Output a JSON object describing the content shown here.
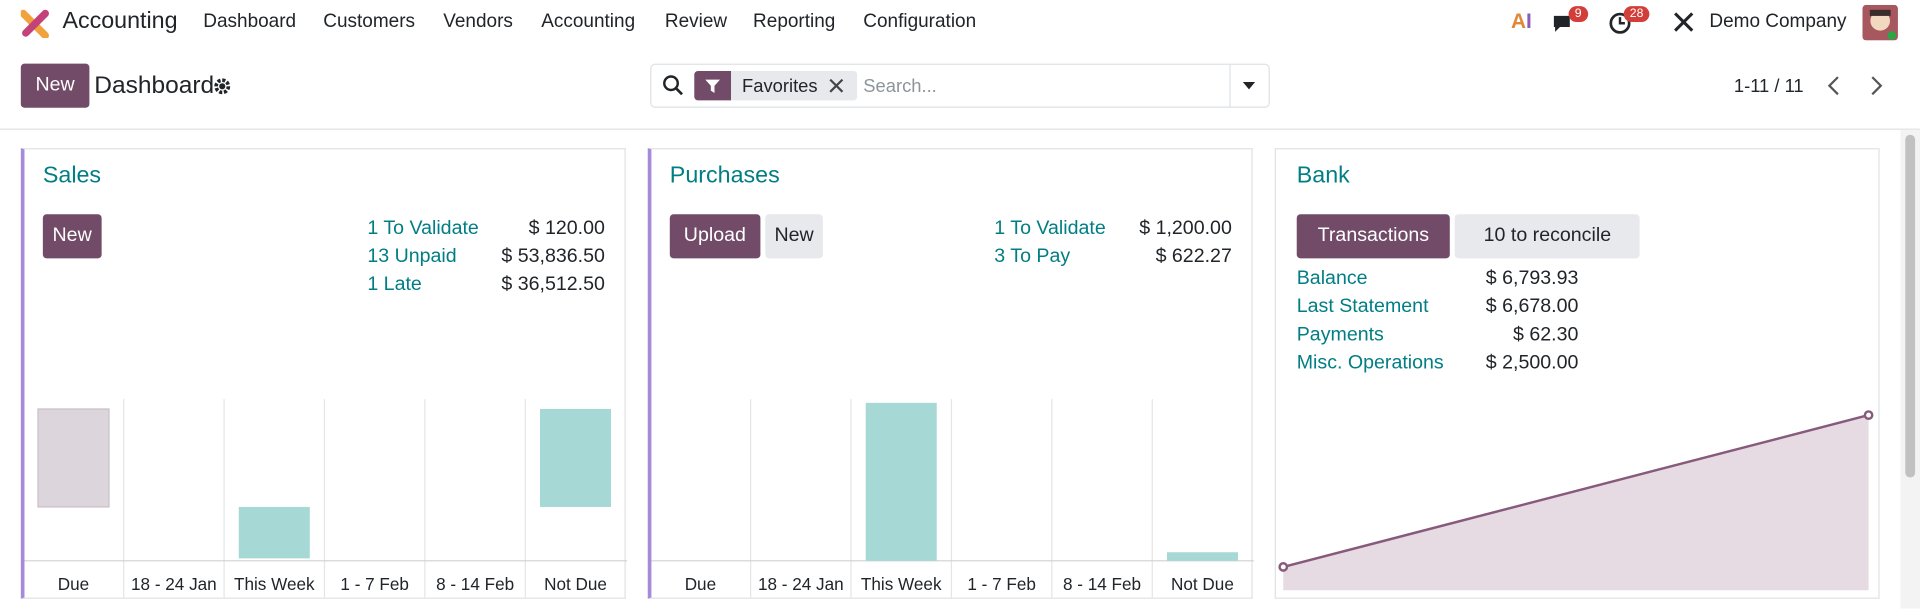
{
  "navbar": {
    "app": "Accounting",
    "menu": [
      "Dashboard",
      "Customers",
      "Vendors",
      "Accounting",
      "Review",
      "Reporting",
      "Configuration"
    ],
    "chat_count": 9,
    "activity_count": 28,
    "company": "Demo Company"
  },
  "control_panel": {
    "new": "New",
    "title": "Dashboard",
    "facet_label": "Favorites",
    "search_placeholder": "Search...",
    "pager": "1-11 / 11"
  },
  "cards": [
    {
      "title": "Sales",
      "buttons": [
        "New"
      ],
      "stats": [
        {
          "label": "1 To Validate",
          "amount": "$ 120.00"
        },
        {
          "label": "13 Unpaid",
          "amount": "$ 53,836.50"
        },
        {
          "label": "1 Late",
          "amount": "$ 36,512.50"
        }
      ],
      "graph": {
        "type": "bar",
        "categories": [
          "Due",
          "18 - 24 Jan",
          "This Week",
          "1 - 7 Feb",
          "8 - 14 Feb",
          "Not Due"
        ],
        "values": [
          80,
          0,
          -42,
          0,
          0,
          80
        ],
        "colors": [
          "#dcd5dc",
          "#a6d8d6",
          "#a6d8d6",
          "#a6d8d6",
          "#a6d8d6",
          "#a6d8d6"
        ],
        "ylim": [
          -44,
          88
        ]
      }
    },
    {
      "title": "Purchases",
      "buttons": [
        "Upload",
        "New"
      ],
      "stats": [
        {
          "label": "1 To Validate",
          "amount": "$ 1,200.00"
        },
        {
          "label": "3 To Pay",
          "amount": "$ 622.27"
        }
      ],
      "graph": {
        "type": "bar",
        "categories": [
          "Due",
          "18 - 24 Jan",
          "This Week",
          "1 - 7 Feb",
          "8 - 14 Feb",
          "Not Due"
        ],
        "values": [
          0,
          0,
          129,
          0,
          0,
          7
        ],
        "colors": [
          "#a6d8d6",
          "#a6d8d6",
          "#a6d8d6",
          "#a6d8d6",
          "#a6d8d6",
          "#a6d8d6"
        ],
        "ylim": [
          0,
          132
        ]
      }
    },
    {
      "title": "Bank",
      "buttons": [
        "Transactions",
        "10 to reconcile"
      ],
      "stats": [
        {
          "label": "Balance",
          "amount": "$ 6,793.93"
        },
        {
          "label": "Last Statement",
          "amount": "$ 6,678.00"
        },
        {
          "label": "Payments",
          "amount": "$ 62.30"
        },
        {
          "label": "Misc. Operations",
          "amount": "$ 2,500.00"
        }
      ],
      "graph": {
        "type": "line",
        "values": [
          19,
          143
        ],
        "color": "#875a7b",
        "ylim": [
          0,
          156
        ]
      }
    }
  ]
}
